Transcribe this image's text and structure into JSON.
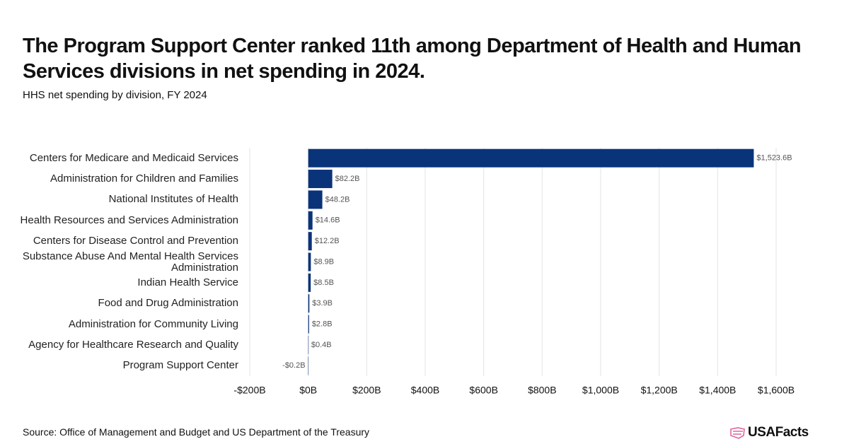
{
  "chart_data": {
    "type": "bar",
    "orientation": "horizontal",
    "title": "The Program Support Center ranked 11th among Department of Health and Human Services divisions in net spending in 2024.",
    "subtitle": "HHS net spending by division, FY 2024",
    "categories": [
      "Centers for Medicare and Medicaid Services",
      "Administration for Children and Families",
      "National Institutes of Health",
      "Health Resources and Services Administration",
      "Centers for Disease Control and Prevention",
      "Substance Abuse And Mental Health Services Administration",
      "Indian Health Service",
      "Food and Drug Administration",
      "Administration for Community Living",
      "Agency for Healthcare Research and Quality",
      "Program Support Center"
    ],
    "values": [
      1523.6,
      82.2,
      48.2,
      14.6,
      12.2,
      8.9,
      8.5,
      3.9,
      2.8,
      0.4,
      -0.2
    ],
    "value_labels": [
      "$1,523.6B",
      "$82.2B",
      "$48.2B",
      "$14.6B",
      "$12.2B",
      "$8.9B",
      "$8.5B",
      "$3.9B",
      "$2.8B",
      "$0.4B",
      "-$0.2B"
    ],
    "color": "#0a347a",
    "xlim": [
      -200,
      1600
    ],
    "xticks": [
      {
        "value": -200,
        "label": "-$200B"
      },
      {
        "value": 0,
        "label": "$0B"
      },
      {
        "value": 200,
        "label": "$200B"
      },
      {
        "value": 400,
        "label": "$400B"
      },
      {
        "value": 600,
        "label": "$600B"
      },
      {
        "value": 800,
        "label": "$800B"
      },
      {
        "value": 1000,
        "label": "$1,000B"
      },
      {
        "value": 1200,
        "label": "$1,200B"
      },
      {
        "value": 1400,
        "label": "$1,400B"
      },
      {
        "value": 1600,
        "label": "$1,600B"
      }
    ],
    "grid": true
  },
  "source": "Source: Office of Management and Budget and US Department of the Treasury",
  "brand": "USAFacts"
}
